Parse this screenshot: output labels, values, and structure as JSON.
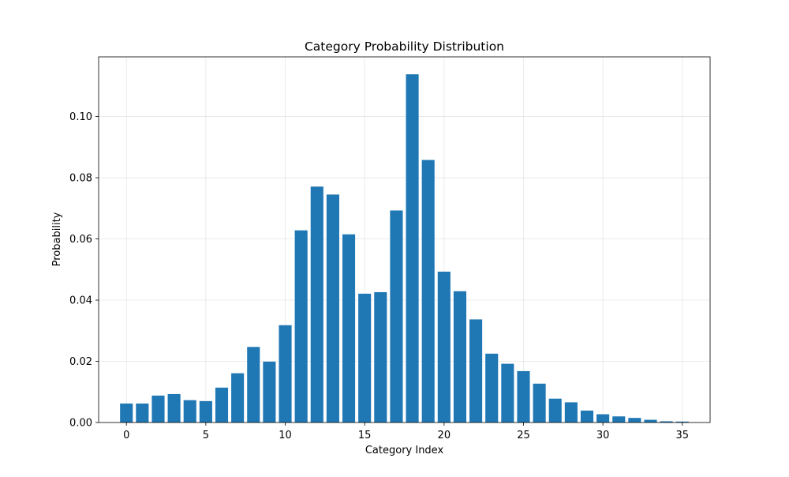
{
  "chart_data": {
    "type": "bar",
    "title": "Category Probability Distribution",
    "xlabel": "Category Index",
    "ylabel": "Probability",
    "categories": [
      0,
      1,
      2,
      3,
      4,
      5,
      6,
      7,
      8,
      9,
      10,
      11,
      12,
      13,
      14,
      15,
      16,
      17,
      18,
      19,
      20,
      21,
      22,
      23,
      24,
      25,
      26,
      27,
      28,
      29,
      30,
      31,
      32,
      33,
      34,
      35
    ],
    "values": [
      0.0062,
      0.0062,
      0.0088,
      0.0093,
      0.0073,
      0.007,
      0.0114,
      0.0161,
      0.0247,
      0.0199,
      0.0318,
      0.0628,
      0.0771,
      0.0745,
      0.0615,
      0.0421,
      0.0426,
      0.0693,
      0.1138,
      0.0858,
      0.0493,
      0.0429,
      0.0337,
      0.0225,
      0.0192,
      0.0168,
      0.0127,
      0.0078,
      0.0066,
      0.0039,
      0.0027,
      0.002,
      0.0015,
      0.0009,
      0.0004,
      0.0003
    ],
    "xlim": [
      -1.75,
      36.75
    ],
    "ylim": [
      0,
      0.1195
    ],
    "xticks": [
      0,
      5,
      10,
      15,
      20,
      25,
      30,
      35
    ],
    "xtick_labels": [
      "0",
      "5",
      "10",
      "15",
      "20",
      "25",
      "30",
      "35"
    ],
    "yticks": [
      0,
      0.02,
      0.04,
      0.06,
      0.08,
      0.1
    ],
    "ytick_labels": [
      "0.00",
      "0.02",
      "0.04",
      "0.06",
      "0.08",
      "0.10"
    ],
    "bar_color": "#1f77b4",
    "grid": true
  }
}
